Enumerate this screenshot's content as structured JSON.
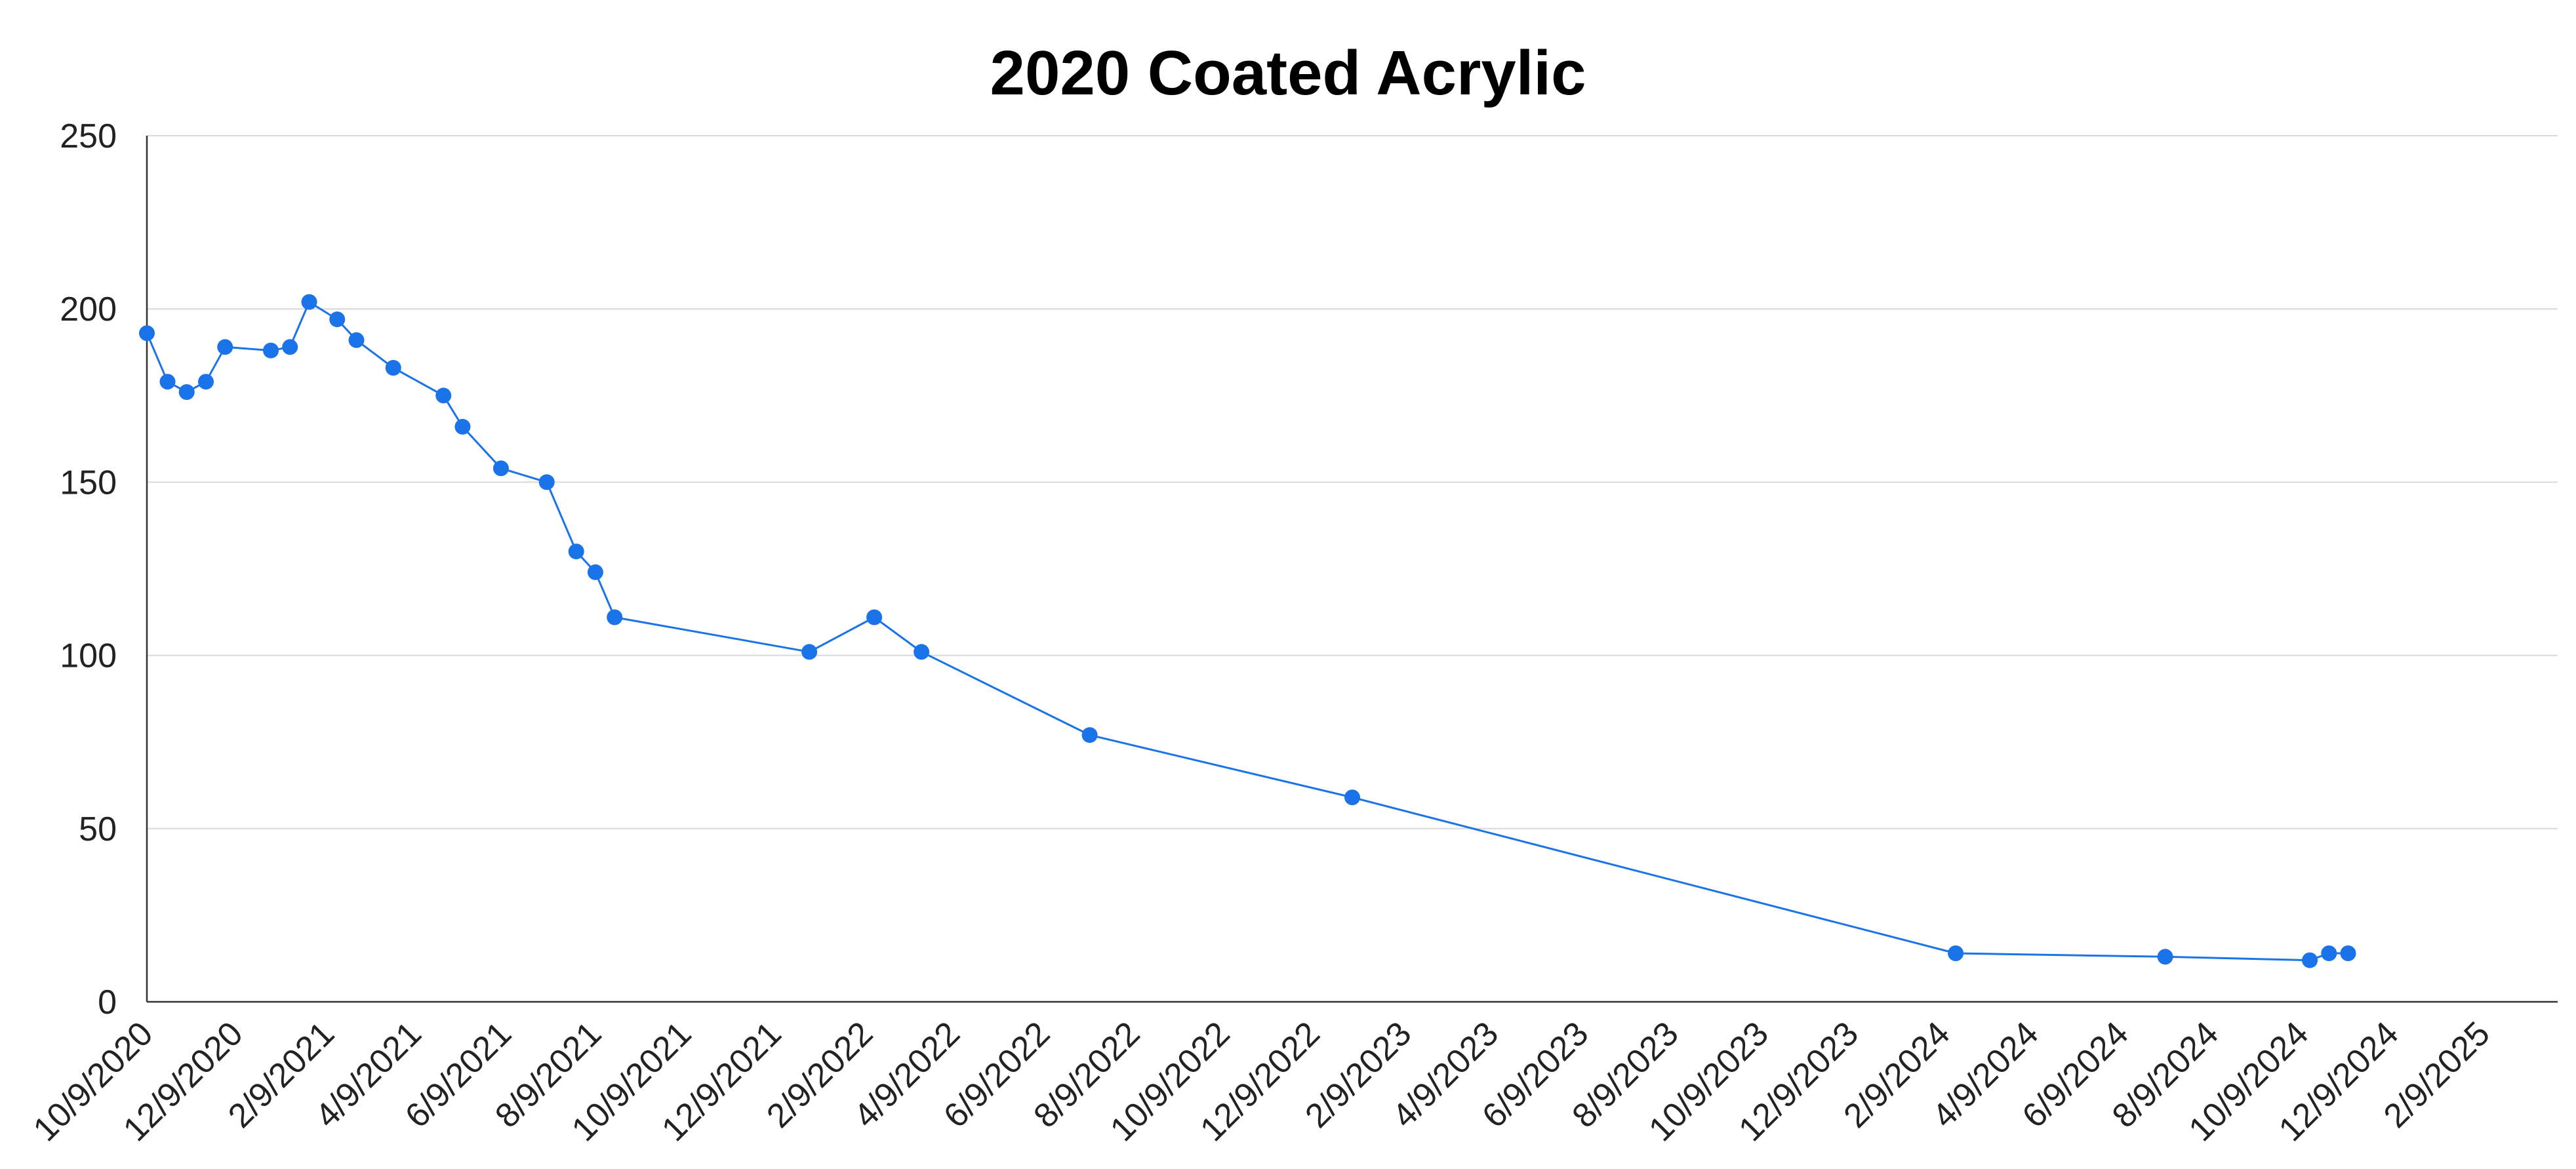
{
  "chart_data": {
    "type": "line",
    "title": "2020 Coated Acrylic",
    "xlabel": "",
    "ylabel": "",
    "ylim": [
      0,
      250
    ],
    "y_ticks": [
      0,
      50,
      100,
      150,
      200,
      250
    ],
    "x_range": [
      "2020-10-09",
      "2025-03-31"
    ],
    "x_tick_labels": [
      {
        "date": "2020-10-09",
        "label": "10/9/2020"
      },
      {
        "date": "2020-12-09",
        "label": "12/9/2020"
      },
      {
        "date": "2021-02-09",
        "label": "2/9/2021"
      },
      {
        "date": "2021-04-09",
        "label": "4/9/2021"
      },
      {
        "date": "2021-06-09",
        "label": "6/9/2021"
      },
      {
        "date": "2021-08-09",
        "label": "8/9/2021"
      },
      {
        "date": "2021-10-09",
        "label": "10/9/2021"
      },
      {
        "date": "2021-12-09",
        "label": "12/9/2021"
      },
      {
        "date": "2022-02-09",
        "label": "2/9/2022"
      },
      {
        "date": "2022-04-09",
        "label": "4/9/2022"
      },
      {
        "date": "2022-06-09",
        "label": "6/9/2022"
      },
      {
        "date": "2022-08-09",
        "label": "8/9/2022"
      },
      {
        "date": "2022-10-09",
        "label": "10/9/2022"
      },
      {
        "date": "2022-12-09",
        "label": "12/9/2022"
      },
      {
        "date": "2023-02-09",
        "label": "2/9/2023"
      },
      {
        "date": "2023-04-09",
        "label": "4/9/2023"
      },
      {
        "date": "2023-06-09",
        "label": "6/9/2023"
      },
      {
        "date": "2023-08-09",
        "label": "8/9/2023"
      },
      {
        "date": "2023-10-09",
        "label": "10/9/2023"
      },
      {
        "date": "2023-12-09",
        "label": "12/9/2023"
      },
      {
        "date": "2024-02-09",
        "label": "2/9/2024"
      },
      {
        "date": "2024-04-09",
        "label": "4/9/2024"
      },
      {
        "date": "2024-06-09",
        "label": "6/9/2024"
      },
      {
        "date": "2024-08-09",
        "label": "8/9/2024"
      },
      {
        "date": "2024-10-09",
        "label": "10/9/2024"
      },
      {
        "date": "2024-12-09",
        "label": "12/9/2024"
      },
      {
        "date": "2025-02-09",
        "label": "2/9/2025"
      }
    ],
    "grid": "horizontal",
    "legend": "none",
    "series": [
      {
        "color": "#1a73e8",
        "points": [
          {
            "x": "2020-10-09",
            "y": 193
          },
          {
            "x": "2020-10-23",
            "y": 179
          },
          {
            "x": "2020-11-05",
            "y": 176
          },
          {
            "x": "2020-11-18",
            "y": 179
          },
          {
            "x": "2020-12-01",
            "y": 189
          },
          {
            "x": "2021-01-01",
            "y": 188
          },
          {
            "x": "2021-01-14",
            "y": 189
          },
          {
            "x": "2021-01-27",
            "y": 202
          },
          {
            "x": "2021-02-15",
            "y": 197
          },
          {
            "x": "2021-02-28",
            "y": 191
          },
          {
            "x": "2021-03-25",
            "y": 183
          },
          {
            "x": "2021-04-28",
            "y": 175
          },
          {
            "x": "2021-05-11",
            "y": 166
          },
          {
            "x": "2021-06-06",
            "y": 154
          },
          {
            "x": "2021-07-07",
            "y": 150
          },
          {
            "x": "2021-07-27",
            "y": 130
          },
          {
            "x": "2021-08-09",
            "y": 124
          },
          {
            "x": "2021-08-22",
            "y": 111
          },
          {
            "x": "2022-01-01",
            "y": 101
          },
          {
            "x": "2022-02-14",
            "y": 111
          },
          {
            "x": "2022-03-18",
            "y": 101
          },
          {
            "x": "2022-07-10",
            "y": 77
          },
          {
            "x": "2023-01-04",
            "y": 59
          },
          {
            "x": "2024-02-17",
            "y": 14
          },
          {
            "x": "2024-07-08",
            "y": 13
          },
          {
            "x": "2024-10-14",
            "y": 12
          },
          {
            "x": "2024-10-27",
            "y": 14
          },
          {
            "x": "2024-11-09",
            "y": 14
          }
        ]
      }
    ]
  }
}
